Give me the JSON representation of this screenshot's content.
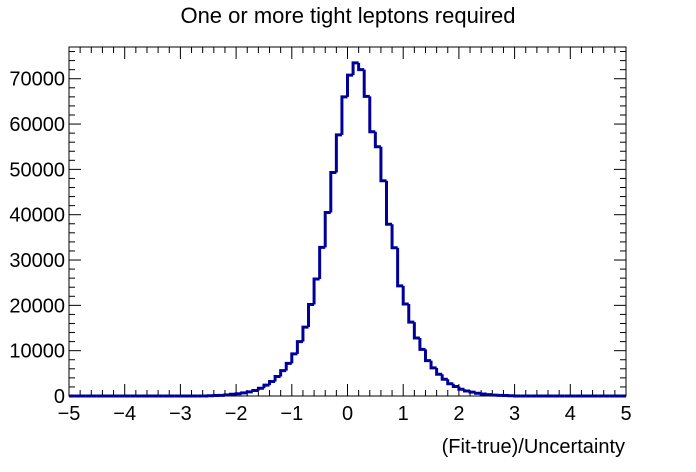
{
  "chart_data": {
    "type": "histogram",
    "title": "One or more tight leptons required",
    "xlabel": "(Fit-true)/Uncertainty",
    "ylabel": "",
    "xlim": [
      -5,
      5
    ],
    "ylim": [
      0,
      77000
    ],
    "grid": false,
    "legend": "none",
    "line_color": "#000099",
    "x_ticks": [
      -5,
      -4,
      -3,
      -2,
      -1,
      0,
      1,
      2,
      3,
      4,
      5
    ],
    "x_tick_labels": [
      "−5",
      "−4",
      "−3",
      "−2",
      "−1",
      "0",
      "1",
      "2",
      "3",
      "4",
      "5"
    ],
    "y_ticks": [
      0,
      10000,
      20000,
      30000,
      40000,
      50000,
      60000,
      70000
    ],
    "y_tick_labels": [
      "0",
      "10000",
      "20000",
      "30000",
      "40000",
      "50000",
      "60000",
      "70000"
    ],
    "bin_edges_start": -5,
    "bin_width": 0.1,
    "values": [
      0,
      0,
      0,
      0,
      0,
      0,
      0,
      0,
      0,
      0,
      0,
      0,
      0,
      0,
      0,
      0,
      0,
      0,
      0,
      0,
      0,
      0,
      0,
      0,
      0,
      50,
      100,
      150,
      250,
      400,
      500,
      700,
      900,
      1200,
      1700,
      2400,
      3200,
      4300,
      5600,
      7200,
      9300,
      12000,
      15200,
      20200,
      25800,
      32800,
      40500,
      49300,
      57600,
      66000,
      70800,
      73500,
      72000,
      66100,
      58300,
      55000,
      47500,
      37900,
      32700,
      24300,
      20300,
      16300,
      12800,
      10300,
      7800,
      6200,
      4800,
      3700,
      2700,
      2100,
      1500,
      1100,
      850,
      600,
      450,
      300,
      200,
      150,
      100,
      50,
      0,
      0,
      0,
      0,
      0,
      0,
      0,
      0,
      0,
      0,
      0,
      0,
      0,
      0,
      0,
      0,
      0,
      0,
      0,
      0
    ]
  }
}
